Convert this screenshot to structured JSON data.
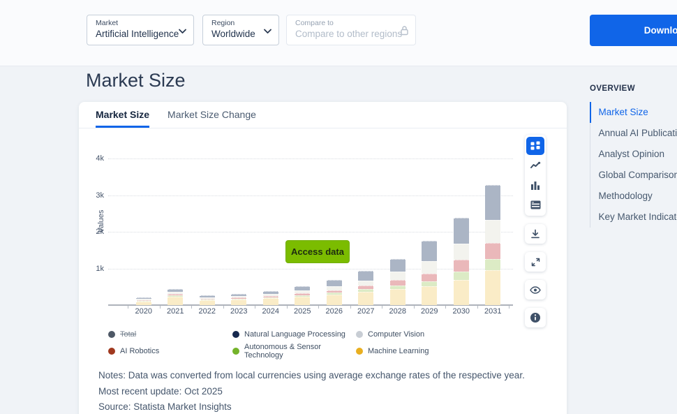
{
  "topbar": {
    "market_filter": {
      "label": "Market",
      "value": "Artificial Intelligence"
    },
    "region_filter": {
      "label": "Region",
      "value": "Worldwide"
    },
    "compare_filter": {
      "label": "Compare to",
      "placeholder": "Compare to other regions",
      "locked": true
    },
    "download_label": "Download"
  },
  "page": {
    "title": "Market Size"
  },
  "tabs": [
    {
      "label": "Market Size",
      "active": true
    },
    {
      "label": "Market Size Change",
      "active": false
    }
  ],
  "chart_ui": {
    "access_button_label": "Access data",
    "toolbar_icons": [
      {
        "name": "grid-view-icon",
        "active": true,
        "group": true
      },
      {
        "name": "line-chart-icon",
        "active": false,
        "group": true
      },
      {
        "name": "bar-chart-icon",
        "active": false,
        "group": true
      },
      {
        "name": "table-view-icon",
        "active": false,
        "group": true
      },
      {
        "name": "download-icon",
        "active": false,
        "group": false
      },
      {
        "name": "expand-icon",
        "active": false,
        "group": false
      },
      {
        "name": "eye-icon",
        "active": false,
        "group": false
      },
      {
        "name": "info-icon",
        "active": false,
        "group": false
      }
    ]
  },
  "chart_data": {
    "type": "bar",
    "stacked": true,
    "ylabel": "Values",
    "yticks": [
      "1k",
      "2k",
      "3k",
      "4k"
    ],
    "ylim": [
      0,
      4400
    ],
    "grid": "horizontal-dotted",
    "categories": [
      "2020",
      "2021",
      "2022",
      "2023",
      "2024",
      "2025",
      "2026",
      "2027",
      "2028",
      "2029",
      "2030",
      "2031"
    ],
    "series": [
      {
        "name": "Machine Learning",
        "color": "#faecc7",
        "values": [
          95,
          230,
          135,
          150,
          185,
          230,
          280,
          360,
          440,
          515,
          690,
          950
        ]
      },
      {
        "name": "Autonomous & Sensor Technology",
        "color": "#dcebc5",
        "values": [
          15,
          30,
          20,
          25,
          30,
          40,
          55,
          70,
          100,
          140,
          230,
          300
        ]
      },
      {
        "name": "AI Robotics",
        "color": "#eab8ba",
        "values": [
          20,
          40,
          25,
          30,
          40,
          55,
          75,
          105,
          150,
          210,
          310,
          450
        ]
      },
      {
        "name": "Computer Vision",
        "color": "#f3f3ee",
        "values": [
          35,
          60,
          35,
          40,
          55,
          75,
          105,
          135,
          230,
          330,
          440,
          620
        ]
      },
      {
        "name": "Natural Language Processing",
        "color": "#abb5c5",
        "values": [
          45,
          80,
          45,
          55,
          80,
          120,
          175,
          260,
          340,
          555,
          720,
          960
        ]
      }
    ],
    "legend": [
      {
        "label": "Total",
        "color": "#4e5866",
        "disabled": true,
        "pattern": true
      },
      {
        "label": "Natural Language Processing",
        "color": "#16284e",
        "disabled": false,
        "pattern": false
      },
      {
        "label": "Computer Vision",
        "color": "#c8cdd4",
        "disabled": false,
        "pattern": true
      },
      {
        "label": "AI Robotics",
        "color": "#a0391f",
        "disabled": false,
        "pattern": false
      },
      {
        "label": "Autonomous & Sensor Technology",
        "color": "#74b32a",
        "disabled": false,
        "pattern": false
      },
      {
        "label": "Machine Learning",
        "color": "#e9af20",
        "disabled": false,
        "pattern": false
      }
    ],
    "legend_position": "bottom"
  },
  "notes": {
    "line1": "Notes: Data was converted from local currencies using average exchange rates of the respective year.",
    "line2": "Most recent update: Oct 2025",
    "line3": "Source: Statista Market Insights"
  },
  "sidebar": {
    "heading": "OVERVIEW",
    "items": [
      {
        "label": "Market Size",
        "active": true
      },
      {
        "label": "Annual AI Publications",
        "active": false
      },
      {
        "label": "Analyst Opinion",
        "active": false
      },
      {
        "label": "Global Comparison",
        "active": false
      },
      {
        "label": "Methodology",
        "active": false
      },
      {
        "label": "Key Market Indicators",
        "active": false
      }
    ]
  },
  "colors": {
    "accent_blue": "#1065e8",
    "access_green": "#7bbc00",
    "page_bg": "#f0f3f7"
  }
}
